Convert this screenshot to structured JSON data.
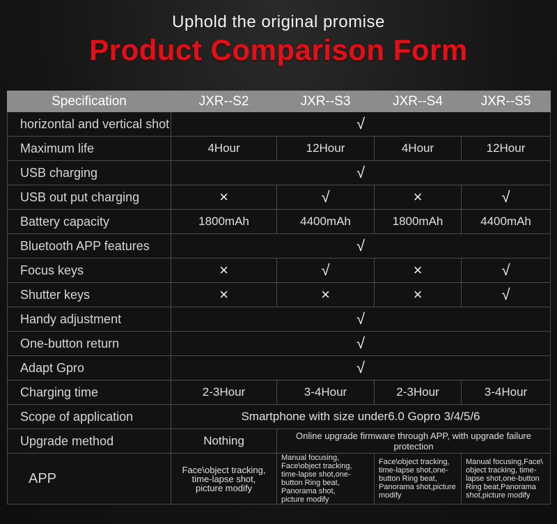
{
  "header": {
    "subtitle": "Uphold the original promise",
    "title": "Product Comparison Form"
  },
  "table": {
    "columns": [
      "Specification",
      "JXR--S2",
      "JXR--S3",
      "JXR--S4",
      "JXR--S5"
    ],
    "rows": [
      {
        "label": "horizontal and vertical shot",
        "cells": [
          "√"
        ]
      },
      {
        "label": "Maximum life",
        "cells": [
          "4Hour",
          "12Hour",
          "4Hour",
          "12Hour"
        ]
      },
      {
        "label": "USB charging",
        "cells": [
          "√"
        ]
      },
      {
        "label": "USB out put charging",
        "cells": [
          "×",
          "√",
          "×",
          "√"
        ]
      },
      {
        "label": "Battery capacity",
        "cells": [
          "1800mAh",
          "4400mAh",
          "1800mAh",
          "4400mAh"
        ]
      },
      {
        "label": "Bluetooth APP features",
        "cells": [
          "√"
        ]
      },
      {
        "label": "Focus keys",
        "cells": [
          "×",
          "√",
          "×",
          "√"
        ]
      },
      {
        "label": "Shutter keys",
        "cells": [
          "×",
          "×",
          "×",
          "√"
        ]
      },
      {
        "label": "Handy adjustment",
        "cells": [
          "√"
        ]
      },
      {
        "label": "One-button return",
        "cells": [
          "√"
        ]
      },
      {
        "label": "Adapt Gpro",
        "cells": [
          "√"
        ]
      },
      {
        "label": "Charging time",
        "cells": [
          "2-3Hour",
          "3-4Hour",
          "2-3Hour",
          "3-4Hour"
        ]
      },
      {
        "label": "Scope of application",
        "cells": [
          "Smartphone with size under6.0 Gopro 3/4/5/6"
        ]
      },
      {
        "label": "Upgrade method",
        "cells": [
          "Nothing",
          "Online upgrade firmware through APP, with upgrade failure protection"
        ]
      },
      {
        "label": "APP",
        "cells": [
          "Face\\object tracking,\ntime-lapse shot,\npicture modify",
          "Manual focusing,\nFace\\object tracking,\ntime-lapse shot,one-\nbutton  Ring beat,\nPanorama shot,\npicture modify",
          "Face\\object tracking,\ntime-lapse shot,one-\nbutton  Ring beat,\nPanorama shot,picture\nmodify",
          "Manual focusing,Face\\\nobject tracking, time-\nlapse shot,one-button\nRing beat,Panorama\nshot,picture modify"
        ]
      }
    ]
  }
}
